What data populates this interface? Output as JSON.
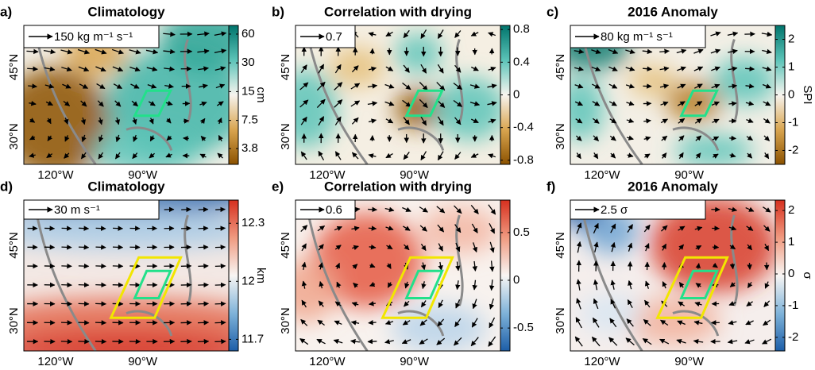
{
  "panels": [
    {
      "letter": "a)",
      "title": "Climatology",
      "reference": "150 kg m⁻¹ s⁻¹",
      "lon_labels": [
        "120°W",
        "90°W"
      ],
      "lat_labels": [
        "45°N",
        "30°N"
      ],
      "colorbar": {
        "label": "cm",
        "log": true,
        "lim": [
          2.6,
          74
        ],
        "ticks": [
          3.8,
          7.5,
          15,
          30,
          60
        ]
      }
    },
    {
      "letter": "b)",
      "title": "Correlation with drying",
      "reference": "0.7",
      "lon_labels": [
        "120°W",
        "90°W"
      ],
      "lat_labels": [
        "45°N",
        "30°N"
      ],
      "colorbar": {
        "log": false,
        "lim": [
          -0.85,
          0.85
        ],
        "ticks": [
          0.8,
          0.4,
          0,
          -0.4,
          -0.8
        ]
      }
    },
    {
      "letter": "c)",
      "title": "2016 Anomaly",
      "reference": "80 kg m⁻¹ s⁻¹",
      "lon_labels": [
        "120°W",
        "90°W"
      ],
      "lat_labels": [
        "45°N",
        "30°N"
      ],
      "colorbar": {
        "label": "SPI",
        "log": false,
        "lim": [
          -2.5,
          2.5
        ],
        "ticks": [
          2,
          1,
          0,
          -1,
          -2
        ]
      }
    },
    {
      "letter": "d)",
      "title": "Climatology",
      "reference": "30 m s⁻¹",
      "lon_labels": [
        "120°W",
        "90°W"
      ],
      "lat_labels": [
        "45°N",
        "30°N"
      ],
      "colorbar": {
        "label": "km",
        "log": false,
        "lim": [
          11.64,
          12.42
        ],
        "ticks": [
          12.3,
          12,
          11.7
        ]
      }
    },
    {
      "letter": "e)",
      "title": "Correlation with drying",
      "reference": "0.6",
      "lon_labels": [
        "120°W",
        "90°W"
      ],
      "lat_labels": [
        "45°N",
        "30°N"
      ],
      "colorbar": {
        "log": false,
        "lim": [
          -0.74,
          0.84
        ],
        "ticks": [
          0.5,
          0,
          -0.5
        ]
      }
    },
    {
      "letter": "f)",
      "title": "2016 Anomaly",
      "reference": "2.5 σ",
      "lon_labels": [
        "120°W",
        "90°W"
      ],
      "lat_labels": [
        "45°N",
        "30°N"
      ],
      "colorbar": {
        "label": "σ",
        "log": false,
        "lim": [
          -2.43,
          2.33
        ],
        "ticks": [
          2,
          1,
          0,
          -1,
          -2
        ]
      }
    }
  ]
}
